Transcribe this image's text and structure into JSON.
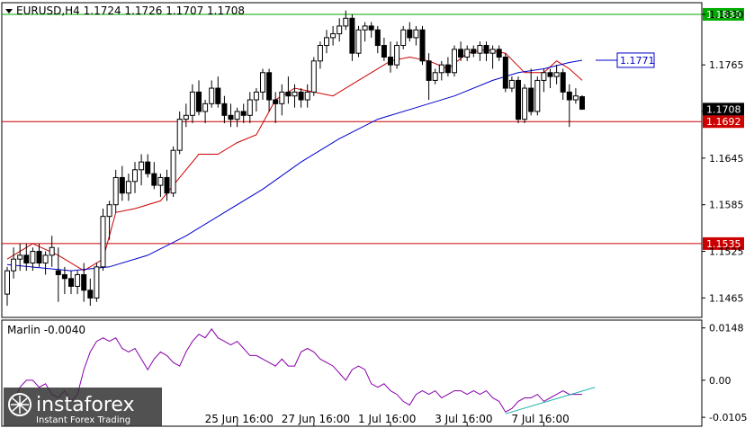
{
  "header": {
    "symbol_line": "EURUSD,H4  1.1724 1.1726 1.1707 1.1708"
  },
  "watermark": {
    "brand": "instaforex",
    "tagline": "Instant Forex Trading"
  },
  "chart_data": {
    "type": "candlestick",
    "symbol": "EURUSD",
    "timeframe": "H4",
    "ohlc_last": {
      "open": 1.1724,
      "high": 1.1726,
      "low": 1.1707,
      "close": 1.1708
    },
    "ylim": [
      1.144,
      1.1845
    ],
    "y_ticks": [
      "1.1830",
      "1.1765",
      "1.1705",
      "1.1645",
      "1.1585",
      "1.1525",
      "1.1465"
    ],
    "x_ticks": [
      "25 Jun 16:00",
      "27 Jun 16:00",
      "1 Jul 16:00",
      "3 Jul 16:00",
      "7 Jul 16:00"
    ],
    "x_tick_positions": [
      36,
      48,
      60,
      72,
      84
    ],
    "candles": [
      [
        1.147,
        1.1505,
        1.1455,
        1.15
      ],
      [
        1.15,
        1.153,
        1.149,
        1.1515
      ],
      [
        1.1515,
        1.1535,
        1.15,
        1.152
      ],
      [
        1.152,
        1.1535,
        1.15,
        1.151
      ],
      [
        1.151,
        1.153,
        1.15,
        1.1525
      ],
      [
        1.1525,
        1.1535,
        1.1505,
        1.151
      ],
      [
        1.151,
        1.1525,
        1.1495,
        1.152
      ],
      [
        1.152,
        1.1545,
        1.1505,
        1.153
      ],
      [
        1.15,
        1.153,
        1.146,
        1.1495
      ],
      [
        1.1495,
        1.1505,
        1.147,
        1.149
      ],
      [
        1.149,
        1.15,
        1.147,
        1.148
      ],
      [
        1.148,
        1.15,
        1.147,
        1.1495
      ],
      [
        1.1495,
        1.151,
        1.146,
        1.1475
      ],
      [
        1.1475,
        1.149,
        1.1455,
        1.1465
      ],
      [
        1.1465,
        1.151,
        1.146,
        1.1505
      ],
      [
        1.1505,
        1.158,
        1.15,
        1.157
      ],
      [
        1.157,
        1.159,
        1.154,
        1.1585
      ],
      [
        1.1585,
        1.163,
        1.1575,
        1.162
      ],
      [
        1.162,
        1.1635,
        1.159,
        1.16
      ],
      [
        1.16,
        1.1625,
        1.159,
        1.1615
      ],
      [
        1.1615,
        1.164,
        1.16,
        1.163
      ],
      [
        1.163,
        1.165,
        1.161,
        1.164
      ],
      [
        1.164,
        1.165,
        1.162,
        1.1625
      ],
      [
        1.1625,
        1.164,
        1.1605,
        1.161
      ],
      [
        1.161,
        1.1625,
        1.1595,
        1.162
      ],
      [
        1.162,
        1.163,
        1.159,
        1.16
      ],
      [
        1.16,
        1.166,
        1.1595,
        1.1655
      ],
      [
        1.1655,
        1.1705,
        1.165,
        1.1695
      ],
      [
        1.1695,
        1.1715,
        1.1685,
        1.17
      ],
      [
        1.17,
        1.174,
        1.169,
        1.173
      ],
      [
        1.173,
        1.1745,
        1.17,
        1.1705
      ],
      [
        1.1705,
        1.172,
        1.169,
        1.1715
      ],
      [
        1.1715,
        1.1745,
        1.171,
        1.1735
      ],
      [
        1.1735,
        1.175,
        1.171,
        1.1715
      ],
      [
        1.1715,
        1.1725,
        1.169,
        1.17
      ],
      [
        1.17,
        1.1715,
        1.1685,
        1.1695
      ],
      [
        1.1695,
        1.171,
        1.1685,
        1.1705
      ],
      [
        1.1705,
        1.1715,
        1.169,
        1.17
      ],
      [
        1.17,
        1.173,
        1.169,
        1.172
      ],
      [
        1.172,
        1.1735,
        1.1705,
        1.173
      ],
      [
        1.173,
        1.176,
        1.172,
        1.1755
      ],
      [
        1.1755,
        1.176,
        1.1705,
        1.172
      ],
      [
        1.172,
        1.173,
        1.169,
        1.1715
      ],
      [
        1.1715,
        1.174,
        1.17,
        1.173
      ],
      [
        1.173,
        1.175,
        1.1715,
        1.1725
      ],
      [
        1.1725,
        1.174,
        1.171,
        1.173
      ],
      [
        1.173,
        1.1735,
        1.171,
        1.172
      ],
      [
        1.172,
        1.174,
        1.171,
        1.173
      ],
      [
        1.173,
        1.1775,
        1.1725,
        1.177
      ],
      [
        1.177,
        1.1795,
        1.176,
        1.179
      ],
      [
        1.179,
        1.181,
        1.178,
        1.18
      ],
      [
        1.18,
        1.1815,
        1.179,
        1.1805
      ],
      [
        1.1805,
        1.1825,
        1.1795,
        1.1815
      ],
      [
        1.1815,
        1.1835,
        1.181,
        1.1825
      ],
      [
        1.1825,
        1.183,
        1.177,
        1.178
      ],
      [
        1.178,
        1.1815,
        1.1775,
        1.181
      ],
      [
        1.181,
        1.182,
        1.1795,
        1.1815
      ],
      [
        1.1815,
        1.182,
        1.18,
        1.181
      ],
      [
        1.181,
        1.1815,
        1.178,
        1.179
      ],
      [
        1.179,
        1.18,
        1.177,
        1.1775
      ],
      [
        1.1775,
        1.1795,
        1.1755,
        1.1765
      ],
      [
        1.1765,
        1.1795,
        1.176,
        1.179
      ],
      [
        1.179,
        1.1815,
        1.1785,
        1.181
      ],
      [
        1.181,
        1.182,
        1.1795,
        1.18
      ],
      [
        1.18,
        1.1815,
        1.179,
        1.181
      ],
      [
        1.181,
        1.1815,
        1.1765,
        1.177
      ],
      [
        1.177,
        1.178,
        1.172,
        1.1745
      ],
      [
        1.1745,
        1.176,
        1.174,
        1.1755
      ],
      [
        1.1755,
        1.177,
        1.1745,
        1.1765
      ],
      [
        1.1765,
        1.1775,
        1.175,
        1.1755
      ],
      [
        1.1755,
        1.179,
        1.175,
        1.1785
      ],
      [
        1.1785,
        1.1795,
        1.177,
        1.1775
      ],
      [
        1.1775,
        1.179,
        1.177,
        1.1785
      ],
      [
        1.1785,
        1.179,
        1.1775,
        1.178
      ],
      [
        1.178,
        1.1795,
        1.177,
        1.179
      ],
      [
        1.179,
        1.1795,
        1.177,
        1.178
      ],
      [
        1.178,
        1.179,
        1.176,
        1.1785
      ],
      [
        1.1785,
        1.179,
        1.177,
        1.1775
      ],
      [
        1.1775,
        1.178,
        1.173,
        1.1735
      ],
      [
        1.1735,
        1.175,
        1.173,
        1.1745
      ],
      [
        1.1745,
        1.175,
        1.169,
        1.1695
      ],
      [
        1.1695,
        1.174,
        1.169,
        1.1735
      ],
      [
        1.1735,
        1.176,
        1.17,
        1.1705
      ],
      [
        1.1705,
        1.175,
        1.17,
        1.1745
      ],
      [
        1.1745,
        1.176,
        1.173,
        1.1755
      ],
      [
        1.1755,
        1.176,
        1.1735,
        1.175
      ],
      [
        1.175,
        1.1765,
        1.174,
        1.1755
      ],
      [
        1.1755,
        1.176,
        1.172,
        1.173
      ],
      [
        1.173,
        1.174,
        1.1685,
        1.172
      ],
      [
        1.172,
        1.1735,
        1.1715,
        1.1725
      ],
      [
        1.1724,
        1.1726,
        1.1707,
        1.1708
      ]
    ],
    "series": [
      {
        "color": "#cc0000",
        "points": [
          [
            0,
            1.1515
          ],
          [
            4,
            1.1535
          ],
          [
            8,
            1.152
          ],
          [
            12,
            1.15
          ],
          [
            15,
            1.1515
          ],
          [
            17,
            1.1575
          ],
          [
            20,
            1.158
          ],
          [
            24,
            1.159
          ],
          [
            27,
            1.162
          ],
          [
            30,
            1.165
          ],
          [
            33,
            1.165
          ],
          [
            36,
            1.1665
          ],
          [
            39,
            1.1675
          ],
          [
            42,
            1.172
          ],
          [
            45,
            1.1735
          ],
          [
            48,
            1.173
          ],
          [
            51,
            1.1725
          ],
          [
            54,
            1.174
          ],
          [
            57,
            1.1755
          ],
          [
            60,
            1.177
          ],
          [
            63,
            1.1775
          ],
          [
            66,
            1.177
          ],
          [
            69,
            1.176
          ],
          [
            72,
            1.178
          ],
          [
            75,
            1.1785
          ],
          [
            78,
            1.178
          ],
          [
            81,
            1.1755
          ],
          [
            84,
            1.1755
          ],
          [
            86,
            1.177
          ],
          [
            88,
            1.176
          ],
          [
            90,
            1.1745
          ]
        ]
      },
      {
        "color": "#0000cc",
        "points": [
          [
            0,
            1.1508
          ],
          [
            10,
            1.15
          ],
          [
            16,
            1.1505
          ],
          [
            22,
            1.152
          ],
          [
            28,
            1.1545
          ],
          [
            34,
            1.1575
          ],
          [
            40,
            1.1605
          ],
          [
            46,
            1.164
          ],
          [
            52,
            1.167
          ],
          [
            58,
            1.1695
          ],
          [
            64,
            1.171
          ],
          [
            70,
            1.1725
          ],
          [
            76,
            1.1745
          ],
          [
            80,
            1.1755
          ],
          [
            84,
            1.176
          ],
          [
            88,
            1.1768
          ],
          [
            90,
            1.1771
          ]
        ]
      }
    ],
    "hlines": [
      {
        "value": 1.183,
        "color": "#00aa00",
        "label": "1.1830"
      },
      {
        "value": 1.1692,
        "color": "#cc0000",
        "label": "1.1692"
      },
      {
        "value": 1.1535,
        "color": "#cc0000",
        "label": "1.1535"
      }
    ],
    "price_tags": [
      {
        "value": 1.1708,
        "label": "1.1708"
      },
      {
        "value": 1.1771,
        "label": "1.1771"
      }
    ],
    "indicator": {
      "label": "Marlin -0.0040",
      "ylim": [
        -0.012,
        0.016
      ],
      "y_ticks": [
        "0.0148",
        "0.00",
        "-0.0105"
      ],
      "y_tick_values": [
        0.0148,
        0.0,
        -0.0105
      ],
      "color": "#8800aa",
      "trend_color": "#20b2aa",
      "values": [
        -0.007,
        -0.006,
        -0.002,
        0.0,
        0.0,
        -0.002,
        -0.001,
        -0.004,
        -0.005,
        -0.003,
        -0.006,
        -0.004,
        0.003,
        0.008,
        0.011,
        0.012,
        0.011,
        0.012,
        0.009,
        0.008,
        0.009,
        0.006,
        0.003,
        0.006,
        0.008,
        0.007,
        0.005,
        0.004,
        0.008,
        0.011,
        0.013,
        0.012,
        0.0145,
        0.012,
        0.011,
        0.01,
        0.011,
        0.009,
        0.007,
        0.007,
        0.006,
        0.005,
        0.004,
        0.006,
        0.004,
        0.004,
        0.008,
        0.009,
        0.008,
        0.006,
        0.005,
        0.004,
        0.002,
        0.0,
        0.003,
        0.004,
        0.003,
        -0.001,
        -0.002,
        -0.001,
        -0.003,
        -0.004,
        -0.006,
        -0.007,
        -0.004,
        -0.003,
        -0.004,
        -0.003,
        -0.005,
        -0.004,
        -0.003,
        -0.003,
        -0.004,
        -0.003,
        -0.004,
        -0.003,
        -0.005,
        -0.006,
        -0.009,
        -0.008,
        -0.006,
        -0.005,
        -0.005,
        -0.004,
        -0.006,
        -0.005,
        -0.004,
        -0.003,
        -0.004,
        -0.004,
        -0.004
      ],
      "trend": [
        [
          78,
          -0.0095
        ],
        [
          92,
          -0.002
        ]
      ]
    }
  }
}
